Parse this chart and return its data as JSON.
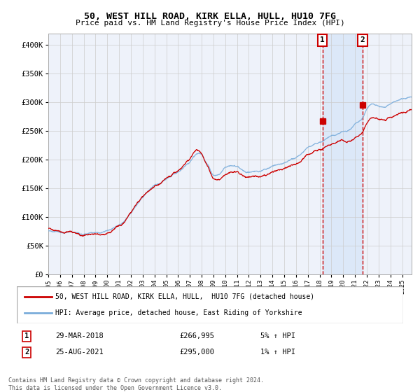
{
  "title": "50, WEST HILL ROAD, KIRK ELLA, HULL, HU10 7FG",
  "subtitle": "Price paid vs. HM Land Registry's House Price Index (HPI)",
  "background_color": "#ffffff",
  "plot_bg_color": "#eef2fa",
  "grid_color": "#cccccc",
  "red_line_color": "#cc0000",
  "blue_line_color": "#7aaddb",
  "highlight_bg_color": "#dce8f8",
  "dashed_line_color": "#cc0000",
  "legend_label_red": "50, WEST HILL ROAD, KIRK ELLA, HULL,  HU10 7FG (detached house)",
  "legend_label_blue": "HPI: Average price, detached house, East Riding of Yorkshire",
  "annotation1_label": "1",
  "annotation1_date": "29-MAR-2018",
  "annotation1_price": "£266,995",
  "annotation1_hpi": "5% ↑ HPI",
  "annotation1_year": 2018.24,
  "annotation1_value": 266995,
  "annotation2_label": "2",
  "annotation2_date": "25-AUG-2021",
  "annotation2_price": "£295,000",
  "annotation2_hpi": "1% ↑ HPI",
  "annotation2_year": 2021.65,
  "annotation2_value": 295000,
  "copyright_text": "Contains HM Land Registry data © Crown copyright and database right 2024.\nThis data is licensed under the Open Government Licence v3.0.",
  "ylim": [
    0,
    420000
  ],
  "yticks": [
    0,
    50000,
    100000,
    150000,
    200000,
    250000,
    300000,
    350000,
    400000
  ],
  "ytick_labels": [
    "£0",
    "£50K",
    "£100K",
    "£150K",
    "£200K",
    "£250K",
    "£300K",
    "£350K",
    "£400K"
  ],
  "xmin": 1995.0,
  "xmax": 2025.8,
  "xtick_years": [
    1995,
    1996,
    1997,
    1998,
    1999,
    2000,
    2001,
    2002,
    2003,
    2004,
    2005,
    2006,
    2007,
    2008,
    2009,
    2010,
    2011,
    2012,
    2013,
    2014,
    2015,
    2016,
    2017,
    2018,
    2019,
    2020,
    2021,
    2022,
    2023,
    2024,
    2025
  ]
}
